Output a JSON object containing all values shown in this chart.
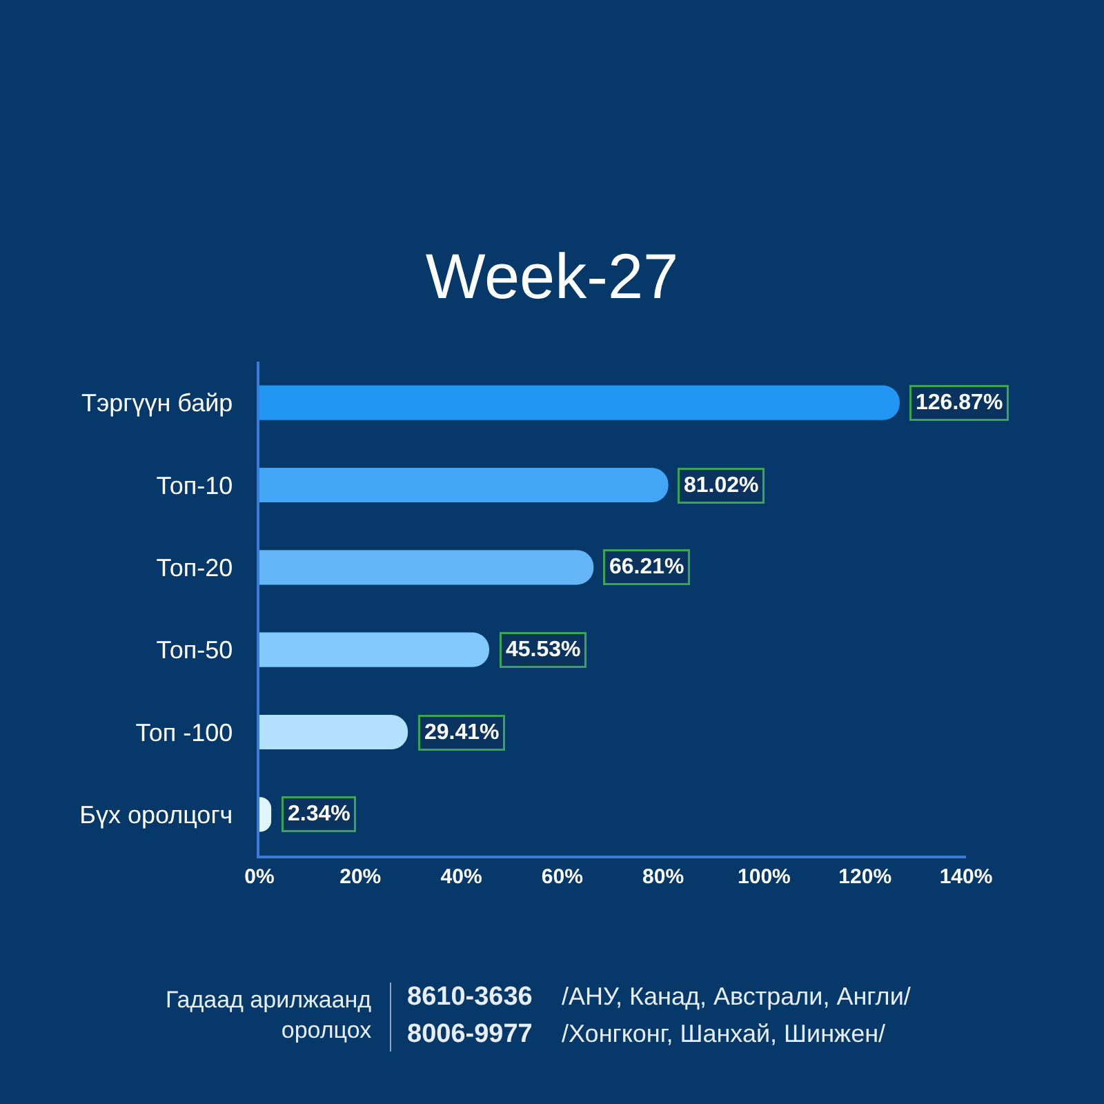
{
  "chart_data": {
    "type": "bar",
    "orientation": "horizontal",
    "title": "Week-27",
    "categories": [
      "Тэргүүн байр",
      "Топ-10",
      "Топ-20",
      "Топ-50",
      "Топ -100",
      "Бүх оролцогч"
    ],
    "values": [
      126.87,
      81.02,
      66.21,
      45.53,
      29.41,
      2.34
    ],
    "value_labels": [
      "126.87%",
      "81.02%",
      "66.21%",
      "45.53%",
      "29.41%",
      "2.34%"
    ],
    "colors": [
      "#2196f3",
      "#42a5f5",
      "#64b5f6",
      "#81c9fa",
      "#b3e0fd",
      "#e1f5fe"
    ],
    "xlim": [
      0,
      140
    ],
    "xticks": [
      {
        "value": 0,
        "label": "0%"
      },
      {
        "value": 20,
        "label": "20%"
      },
      {
        "value": 40,
        "label": "40%"
      },
      {
        "value": 60,
        "label": "60%"
      },
      {
        "value": 80,
        "label": "80%"
      },
      {
        "value": 100,
        "label": "100%"
      },
      {
        "value": 120,
        "label": "120%"
      },
      {
        "value": 140,
        "label": "140%"
      }
    ],
    "grid": false,
    "annotations": [
      "Гадаад арилжаанд\nоролцох",
      "8610-3636",
      "/АНУ, Канад, Австрали, Англи/",
      "8006-9977",
      "/Хонгконг, Шанхай, Шинжен/"
    ]
  }
}
